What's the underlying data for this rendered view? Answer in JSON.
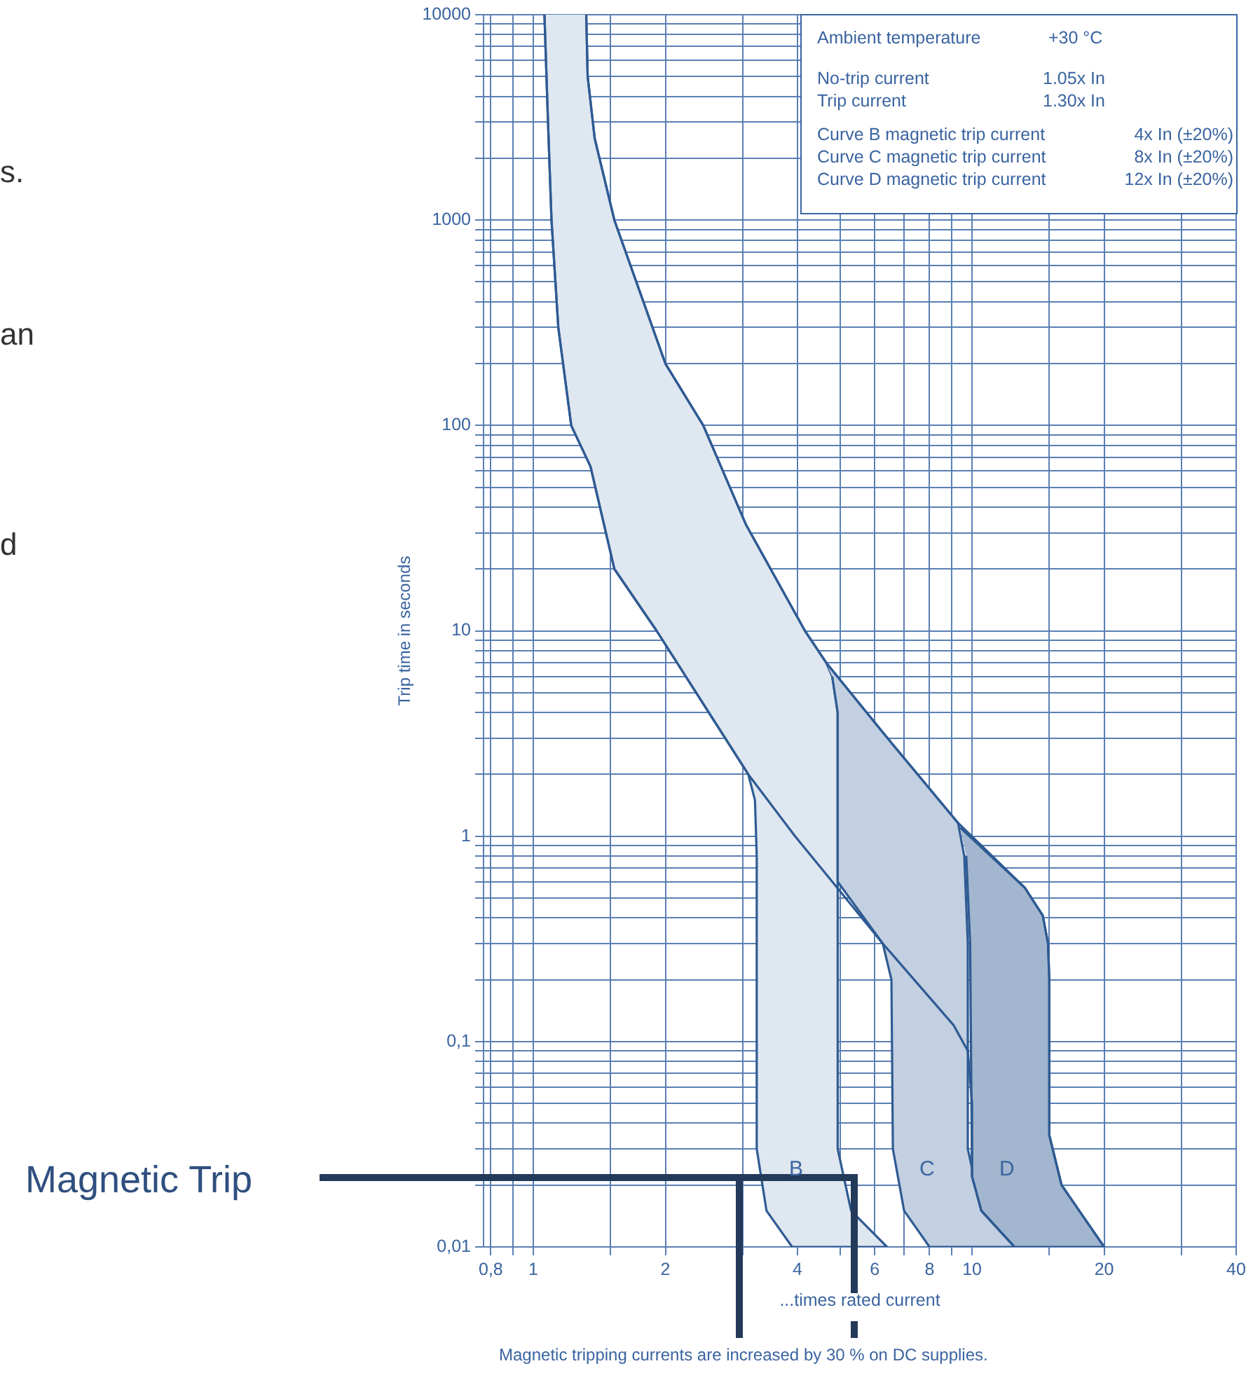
{
  "chart_data": {
    "type": "line",
    "xlabel": "...times rated current",
    "ylabel": "Trip time in seconds",
    "log": "xy",
    "grid": true,
    "xlim": [
      0.77,
      40
    ],
    "ylim": [
      0.01,
      10000
    ],
    "xticks": [
      {
        "value": 0.8,
        "label": "0,8"
      },
      {
        "value": 0.9,
        "label": null
      },
      1,
      {
        "value": 1.5,
        "label": null
      },
      2,
      {
        "value": 3,
        "label": null
      },
      4,
      {
        "value": 5,
        "label": null
      },
      6,
      {
        "value": 7,
        "label": null
      },
      8,
      {
        "value": 9,
        "label": null
      },
      10,
      {
        "value": 15,
        "label": null
      },
      20,
      {
        "value": 30,
        "label": null
      },
      40
    ],
    "yticks": [
      {
        "value": 0.01,
        "label": "0,01"
      },
      {
        "value": 0.02,
        "label": null
      },
      {
        "value": 0.03,
        "label": null
      },
      {
        "value": 0.04,
        "label": null
      },
      {
        "value": 0.05,
        "label": null
      },
      {
        "value": 0.06,
        "label": null
      },
      {
        "value": 0.07,
        "label": null
      },
      {
        "value": 0.08,
        "label": null
      },
      {
        "value": 0.09,
        "label": null
      },
      {
        "value": 0.1,
        "label": "0,1"
      },
      {
        "value": 0.2,
        "label": null
      },
      {
        "value": 0.3,
        "label": null
      },
      {
        "value": 0.4,
        "label": null
      },
      {
        "value": 0.5,
        "label": null
      },
      {
        "value": 0.6,
        "label": null
      },
      {
        "value": 0.7,
        "label": null
      },
      {
        "value": 0.8,
        "label": null
      },
      {
        "value": 0.9,
        "label": null
      },
      1,
      {
        "value": 2,
        "label": null
      },
      {
        "value": 3,
        "label": null
      },
      {
        "value": 4,
        "label": null
      },
      {
        "value": 5,
        "label": null
      },
      {
        "value": 6,
        "label": null
      },
      {
        "value": 7,
        "label": null
      },
      {
        "value": 8,
        "label": null
      },
      {
        "value": 9,
        "label": null
      },
      10,
      {
        "value": 20,
        "label": null
      },
      {
        "value": 30,
        "label": null
      },
      {
        "value": 40,
        "label": null
      },
      {
        "value": 50,
        "label": null
      },
      {
        "value": 60,
        "label": null
      },
      {
        "value": 70,
        "label": null
      },
      {
        "value": 80,
        "label": null
      },
      {
        "value": 90,
        "label": null
      },
      100,
      {
        "value": 200,
        "label": null
      },
      {
        "value": 300,
        "label": null
      },
      {
        "value": 400,
        "label": null
      },
      {
        "value": 500,
        "label": null
      },
      {
        "value": 600,
        "label": null
      },
      {
        "value": 700,
        "label": null
      },
      {
        "value": 800,
        "label": null
      },
      {
        "value": 900,
        "label": null
      },
      1000,
      {
        "value": 2000,
        "label": null
      },
      {
        "value": 3000,
        "label": null
      },
      {
        "value": 4000,
        "label": null
      },
      {
        "value": 5000,
        "label": null
      },
      {
        "value": 6000,
        "label": null
      },
      {
        "value": 7000,
        "label": null
      },
      {
        "value": 8000,
        "label": null
      },
      {
        "value": 9000,
        "label": null
      },
      10000
    ],
    "series": [
      {
        "type": "area",
        "color": "#dfe7f0",
        "x": [
          1.06,
          1.08,
          1.1,
          1.14,
          1.22,
          1.35,
          1.53,
          1.91,
          3.09,
          3.2,
          3.23,
          3.23,
          3.4,
          3.89,
          6.4,
          5.3,
          4.94,
          4.94,
          4.8,
          4.65,
          4.16,
          3.05,
          2.44,
          2.0,
          1.53,
          1.38,
          1.33,
          1.32
        ],
        "values": [
          10000,
          3000,
          1000,
          300,
          100,
          63,
          20,
          10,
          2,
          1.5,
          0.8,
          0.03,
          0.015,
          0.01,
          0.01,
          0.015,
          0.03,
          4,
          6,
          7,
          10,
          33,
          100,
          200,
          1000,
          2500,
          5000,
          10000
        ]
      },
      {
        "type": "area",
        "color": "#c3d0e1",
        "x": [
          4.65,
          6.26,
          9.29,
          9.6,
          9.78,
          9.78,
          10.5,
          12.5,
          8.0,
          7.0,
          6.6,
          6.55,
          6.26,
          4.94,
          4.94,
          4.8
        ],
        "values": [
          7,
          3.2,
          1.16,
          0.8,
          0.3,
          0.03,
          0.015,
          0.01,
          0.01,
          0.015,
          0.03,
          0.2,
          0.3,
          0.6,
          4,
          6
        ]
      },
      {
        "type": "area",
        "color": "#a2b6cf",
        "x": [
          9.4,
          13.2,
          14.5,
          14.9,
          15.0,
          15.0,
          16.0,
          20,
          12.5,
          10.5,
          10,
          9.9,
          9.7
        ],
        "values": [
          1.1,
          0.56,
          0.41,
          0.3,
          0.2,
          0.035,
          0.02,
          0.01,
          0.01,
          0.015,
          0.022,
          0.3,
          0.8
        ]
      },
      {
        "type": "line",
        "color": "#2f5b93",
        "x": [
          1.32,
          1.33,
          1.38,
          1.53,
          2.0,
          2.44,
          3.05,
          4.16,
          4.65,
          6.26,
          9.29,
          13.2,
          14.5,
          14.9,
          15.0,
          15.0,
          16.0,
          20
        ],
        "values": [
          10000,
          5000,
          2500,
          1000,
          200,
          100,
          33,
          10,
          7,
          3.2,
          1.16,
          0.56,
          0.41,
          0.3,
          0.2,
          0.035,
          0.02,
          0.01
        ]
      },
      {
        "type": "line",
        "color": "#2f5b93",
        "x": [
          1.06,
          1.08,
          1.1,
          1.14,
          1.22,
          1.35,
          1.53,
          1.91,
          3.09,
          3.95,
          6.26,
          9.08,
          9.78,
          10,
          10,
          10.5,
          12.5
        ],
        "values": [
          10000,
          3000,
          1000,
          300,
          100,
          63,
          20,
          10,
          2,
          1,
          0.3,
          0.12,
          0.09,
          0.05,
          0.022,
          0.015,
          0.01
        ]
      }
    ],
    "annotations": [
      "s.",
      "an",
      "d",
      "Ambient temperature",
      "+30 °C",
      "No-trip current",
      "1.05x In",
      "Trip current",
      "1.30x In",
      "Curve B magnetic trip current",
      "4x In (±20%)",
      "Curve C magnetic trip current",
      "8x In (±20%)",
      "Curve D magnetic trip current",
      "12x In (±20%)",
      "Magnetic Trip",
      "Magnetic tripping currents are increased by 30 % on DC supplies.",
      "B",
      "C",
      "D"
    ]
  }
}
